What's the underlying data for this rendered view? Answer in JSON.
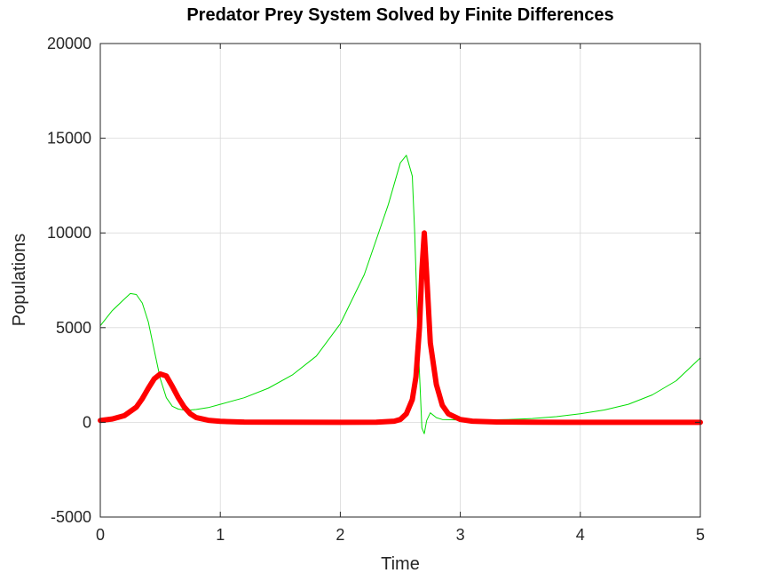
{
  "chart_data": {
    "type": "line",
    "title": "Predator Prey System Solved by Finite Differences",
    "xlabel": "Time",
    "ylabel": "Populations",
    "xlim": [
      0,
      5
    ],
    "ylim": [
      -5000,
      20000
    ],
    "xticks": [
      0,
      1,
      2,
      3,
      4,
      5
    ],
    "yticks": [
      -5000,
      0,
      5000,
      10000,
      15000,
      20000
    ],
    "grid": true,
    "series": [
      {
        "color": "#00dd00",
        "line": "thin",
        "x": [
          0,
          0.1,
          0.2,
          0.25,
          0.3,
          0.35,
          0.4,
          0.45,
          0.5,
          0.55,
          0.6,
          0.65,
          0.7,
          0.75,
          0.8,
          0.9,
          1.0,
          1.2,
          1.4,
          1.6,
          1.8,
          2.0,
          2.2,
          2.4,
          2.5,
          2.55,
          2.6,
          2.62,
          2.65,
          2.68,
          2.7,
          2.72,
          2.75,
          2.8,
          2.85,
          3.0,
          3.2,
          3.4,
          3.6,
          3.8,
          4.0,
          4.2,
          4.4,
          4.6,
          4.8,
          5.0
        ],
        "y": [
          5100,
          5900,
          6500,
          6800,
          6750,
          6300,
          5300,
          3800,
          2300,
          1300,
          850,
          700,
          650,
          650,
          680,
          780,
          950,
          1300,
          1800,
          2500,
          3500,
          5200,
          7800,
          11500,
          13700,
          14100,
          13000,
          10000,
          4000,
          -300,
          -600,
          100,
          500,
          250,
          150,
          120,
          120,
          150,
          200,
          300,
          450,
          650,
          950,
          1450,
          2200,
          3400
        ]
      },
      {
        "color": "#ff0000",
        "line": "thick",
        "x": [
          0,
          0.1,
          0.2,
          0.3,
          0.35,
          0.4,
          0.45,
          0.5,
          0.55,
          0.6,
          0.65,
          0.7,
          0.75,
          0.8,
          0.9,
          1.0,
          1.2,
          1.5,
          2.0,
          2.3,
          2.45,
          2.5,
          2.55,
          2.6,
          2.63,
          2.66,
          2.68,
          2.7,
          2.72,
          2.75,
          2.8,
          2.85,
          2.9,
          3.0,
          3.1,
          3.3,
          3.6,
          4.0,
          5.0
        ],
        "y": [
          100,
          180,
          350,
          800,
          1250,
          1800,
          2300,
          2550,
          2450,
          1900,
          1300,
          800,
          450,
          250,
          110,
          50,
          15,
          5,
          2,
          10,
          60,
          150,
          450,
          1200,
          2400,
          5000,
          8000,
          10000,
          7800,
          4200,
          2000,
          900,
          450,
          150,
          60,
          20,
          5,
          2,
          1
        ]
      }
    ]
  }
}
